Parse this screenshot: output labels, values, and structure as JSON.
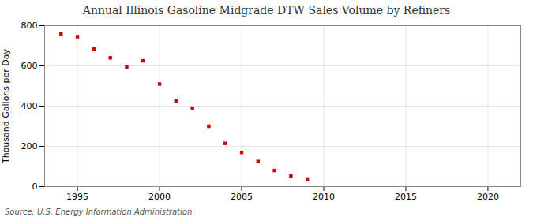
{
  "chart_data": {
    "type": "scatter",
    "title": "Annual Illinois Gasoline Midgrade DTW Sales Volume by Refiners",
    "ylabel": "Thousand Gallons per Day",
    "source": "Source: U.S. Energy Information Administration",
    "x": [
      1994,
      1995,
      1996,
      1997,
      1998,
      1999,
      2000,
      2001,
      2002,
      2003,
      2004,
      2005,
      2006,
      2007,
      2008,
      2009
    ],
    "values": [
      760,
      745,
      685,
      640,
      595,
      625,
      510,
      425,
      390,
      300,
      215,
      170,
      125,
      80,
      52,
      38
    ],
    "color": "#cc0000",
    "marker": "square",
    "xlim": [
      1993,
      2022
    ],
    "ylim": [
      0,
      800
    ],
    "xticks": [
      1995,
      2000,
      2005,
      2010,
      2015,
      2020
    ],
    "yticks": [
      0,
      200,
      400,
      600,
      800
    ],
    "grid": true
  }
}
